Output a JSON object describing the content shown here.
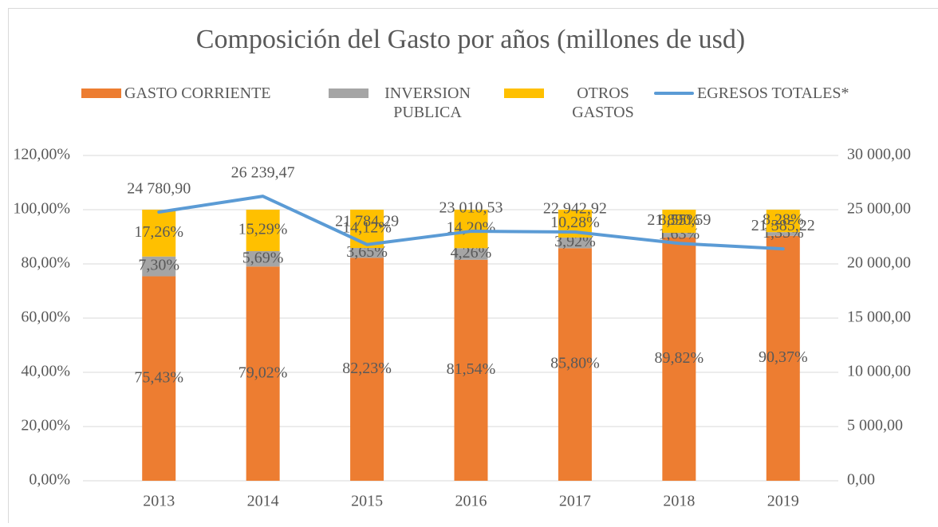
{
  "chart_data": {
    "type": "bar",
    "stacked": true,
    "title": "Composición del Gasto por años (millones de usd)",
    "categories": [
      "2013",
      "2014",
      "2015",
      "2016",
      "2017",
      "2018",
      "2019"
    ],
    "series": [
      {
        "name": "GASTO CORRIENTE",
        "color": "#ed7d31",
        "values": [
          75.43,
          79.02,
          82.23,
          81.54,
          85.8,
          89.82,
          90.37
        ],
        "value_labels": [
          "75,43%",
          "79,02%",
          "82,23%",
          "81,54%",
          "85,80%",
          "89,82%",
          "90,37%"
        ]
      },
      {
        "name": "INVERSION PUBLICA",
        "color": "#a5a5a5",
        "values": [
          7.3,
          5.69,
          3.65,
          4.26,
          3.92,
          1.63,
          1.35
        ],
        "value_labels": [
          "7,30%",
          "5,69%",
          "3,65%",
          "4,26%",
          "3,92%",
          "1,63%",
          "1,35%"
        ]
      },
      {
        "name": "OTROS GASTOS",
        "color": "#ffc000",
        "values": [
          17.26,
          15.29,
          14.12,
          14.2,
          10.28,
          8.55,
          8.28
        ],
        "value_labels": [
          "17,26%",
          "15,29%",
          "14,12%",
          "14,20%",
          "10,28%",
          "8,55%",
          "8,28%"
        ]
      },
      {
        "name": "EGRESOS TOTALES*",
        "color": "#5b9bd5",
        "type": "line",
        "axis": "y2",
        "values": [
          24780.9,
          26239.47,
          21784.29,
          23010.53,
          22942.92,
          21890.59,
          21385.22
        ],
        "value_labels": [
          "24 780,90",
          "26 239,47",
          "21 784,29",
          "23 010,53",
          "22 942,92",
          "21 890,59",
          "21 385,22"
        ]
      }
    ],
    "ylim": [
      0,
      120
    ],
    "yticks": [
      {
        "value": 0,
        "label": "0,00%"
      },
      {
        "value": 20,
        "label": "20,00%"
      },
      {
        "value": 40,
        "label": "40,00%"
      },
      {
        "value": 60,
        "label": "60,00%"
      },
      {
        "value": 80,
        "label": "80,00%"
      },
      {
        "value": 100,
        "label": "100,00%"
      },
      {
        "value": 120,
        "label": "120,00%"
      }
    ],
    "y2lim": [
      0,
      30000
    ],
    "y2ticks": [
      {
        "value": 0,
        "label": "0,00"
      },
      {
        "value": 5000,
        "label": "5 000,00"
      },
      {
        "value": 10000,
        "label": "10 000,00"
      },
      {
        "value": 15000,
        "label": "15 000,00"
      },
      {
        "value": 20000,
        "label": "20 000,00"
      },
      {
        "value": 25000,
        "label": "25 000,00"
      },
      {
        "value": 30000,
        "label": "30 000,00"
      }
    ],
    "grid": true,
    "legend": "top"
  }
}
